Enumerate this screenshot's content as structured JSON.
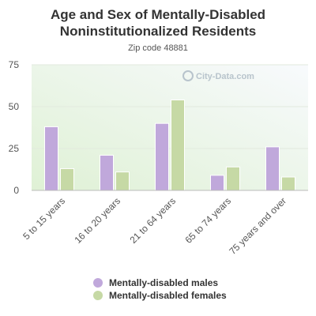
{
  "chart_data": {
    "type": "bar",
    "title": "Age and Sex of Mentally-Disabled Noninstitutionalized Residents",
    "subtitle": "Zip code 48881",
    "watermark": "City-Data.com",
    "categories": [
      "5 to 15 years",
      "16 to 20 years",
      "21 to 64 years",
      "65 to 74 years",
      "75 years and over"
    ],
    "series": [
      {
        "name": "Mentally-disabled males",
        "color": "#c0a8db",
        "values": [
          38,
          21,
          40,
          9,
          26
        ]
      },
      {
        "name": "Mentally-disabled females",
        "color": "#c6d9a5",
        "values": [
          13,
          11,
          54,
          14,
          8
        ]
      }
    ],
    "yticks": [
      0,
      25,
      50,
      75
    ],
    "ylim": [
      0,
      75
    ],
    "xlabel": "",
    "ylabel": "",
    "grid": true,
    "legend_position": "bottom"
  }
}
